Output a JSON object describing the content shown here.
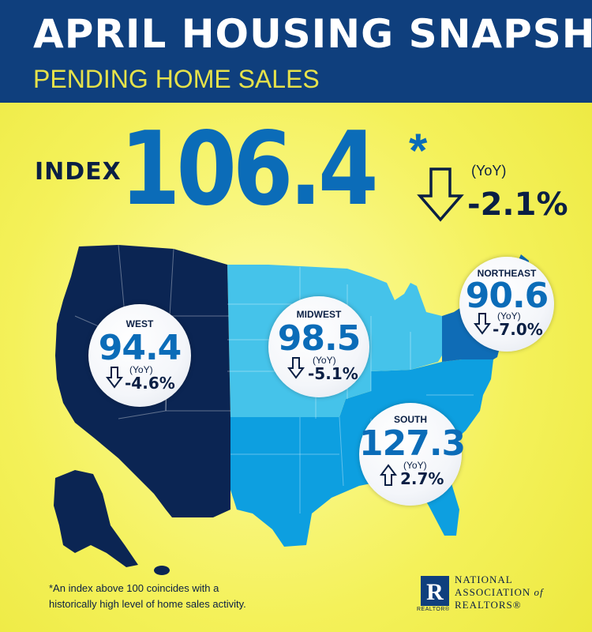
{
  "header": {
    "title": "APRIL  HOUSING SNAPSHOT",
    "subtitle": "PENDING HOME SALES"
  },
  "national": {
    "label": "INDEX",
    "value": "106.4",
    "asterisk": "*",
    "yoy_label": "(YoY)",
    "yoy_change": "-2.1%",
    "direction": "down"
  },
  "regions": {
    "west": {
      "name": "WEST",
      "value": "94.4",
      "yoy_label": "(YoY)",
      "yoy_change": "-4.6%",
      "direction": "down"
    },
    "midwest": {
      "name": "MIDWEST",
      "value": "98.5",
      "yoy_label": "(YoY)",
      "yoy_change": "-5.1%",
      "direction": "down"
    },
    "northeast": {
      "name": "NORTHEAST",
      "value": "90.6",
      "yoy_label": "(YoY)",
      "yoy_change": "-7.0%",
      "direction": "down"
    },
    "south": {
      "name": "SOUTH",
      "value": "127.3",
      "yoy_label": "(YoY)",
      "yoy_change": "2.7%",
      "direction": "up"
    }
  },
  "footnote": {
    "line1": "*An index above 100 coincides with a",
    "line2": "historically high level of home sales activity."
  },
  "logo": {
    "line1": "NATIONAL",
    "line2": "ASSOCIATION",
    "line2_suffix": "of",
    "line3": "REALTORS®",
    "sub": "REALTOR®",
    "letter": "R"
  },
  "colors": {
    "header_bg": "#0f3f7d",
    "subtitle": "#e6e24a",
    "accent_blue": "#0b6cb8",
    "west_region": "#0b2553",
    "midwest_region": "#45c3ea",
    "northeast_region": "#0f6cb6",
    "south_region": "#0d9fe0",
    "background_yellow": "#f4f15a"
  },
  "icons": [
    "arrow-down-icon",
    "arrow-up-icon",
    "realtor-logo-icon"
  ]
}
